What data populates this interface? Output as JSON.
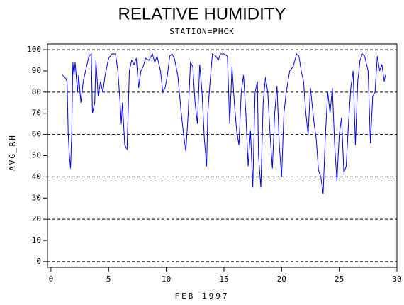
{
  "chart_data": {
    "type": "line",
    "title": "RELATIVE HUMIDITY",
    "subtitle": "STATION=PHCK",
    "x_label": "FEB 1997",
    "y_label": "AVG_RH",
    "color": "#0000ff",
    "xlim": [
      -0.3,
      30
    ],
    "ylim": [
      -2.7,
      102.7
    ],
    "xticks": [
      0,
      5,
      10,
      15,
      20,
      25,
      30
    ],
    "yticks": [
      0,
      10,
      20,
      30,
      40,
      50,
      60,
      70,
      80,
      90,
      100
    ],
    "grid_lines": [
      0,
      20,
      40,
      60,
      80,
      100
    ],
    "x": [
      1.0,
      1.2,
      1.4,
      1.5,
      1.6,
      1.7,
      1.8,
      1.9,
      2.0,
      2.1,
      2.3,
      2.4,
      2.6,
      2.8,
      3.0,
      3.3,
      3.5,
      3.6,
      3.8,
      3.9,
      4.1,
      4.3,
      4.5,
      4.7,
      5.0,
      5.3,
      5.6,
      5.8,
      6.0,
      6.1,
      6.2,
      6.4,
      6.6,
      6.8,
      7.0,
      7.2,
      7.4,
      7.6,
      7.8,
      8.0,
      8.2,
      8.5,
      8.8,
      9.0,
      9.2,
      9.5,
      9.7,
      9.9,
      10.1,
      10.3,
      10.5,
      10.7,
      11.0,
      11.3,
      11.5,
      11.7,
      11.9,
      12.1,
      12.3,
      12.5,
      12.7,
      12.9,
      13.1,
      13.3,
      13.5,
      13.6,
      13.8,
      14.0,
      14.3,
      14.5,
      14.7,
      15.0,
      15.3,
      15.5,
      15.7,
      15.9,
      16.1,
      16.3,
      16.5,
      16.7,
      16.9,
      17.1,
      17.3,
      17.5,
      17.7,
      17.9,
      18.0,
      18.2,
      18.4,
      18.6,
      18.8,
      19.0,
      19.2,
      19.4,
      19.6,
      19.8,
      20.0,
      20.2,
      20.4,
      20.7,
      21.0,
      21.3,
      21.5,
      21.7,
      21.9,
      22.1,
      22.3,
      22.5,
      22.8,
      23.0,
      23.2,
      23.4,
      23.6,
      23.8,
      24.0,
      24.2,
      24.4,
      24.6,
      24.8,
      25.0,
      25.2,
      25.4,
      25.6,
      25.8,
      26.0,
      26.2,
      26.4,
      26.6,
      26.8,
      27.0,
      27.2,
      27.5,
      27.7,
      27.9,
      28.1,
      28.3,
      28.5,
      28.7,
      28.9,
      29.0
    ],
    "values": [
      88,
      87,
      85,
      60,
      50,
      44,
      60,
      94,
      88,
      94,
      80,
      88,
      75,
      85,
      90,
      97,
      98,
      70,
      75,
      95,
      78,
      85,
      80,
      88,
      96,
      98,
      98,
      90,
      75,
      65,
      75,
      55,
      53,
      90,
      95,
      93,
      96,
      82,
      90,
      92,
      96,
      95,
      98,
      94,
      97,
      90,
      80,
      82,
      88,
      97,
      98,
      96,
      88,
      70,
      60,
      52,
      70,
      94,
      92,
      75,
      65,
      93,
      80,
      58,
      45,
      70,
      85,
      98,
      97,
      95,
      98,
      98,
      97,
      65,
      92,
      75,
      62,
      55,
      80,
      88,
      70,
      45,
      62,
      35,
      80,
      85,
      50,
      35,
      75,
      87,
      80,
      60,
      44,
      70,
      83,
      55,
      40,
      70,
      80,
      90,
      92,
      98,
      97,
      90,
      85,
      70,
      60,
      82,
      66,
      58,
      43,
      40,
      32,
      60,
      80,
      70,
      82,
      55,
      38,
      60,
      68,
      42,
      45,
      65,
      82,
      90,
      55,
      85,
      95,
      98,
      97,
      90,
      56,
      78,
      80,
      97,
      90,
      93,
      85,
      88
    ]
  }
}
